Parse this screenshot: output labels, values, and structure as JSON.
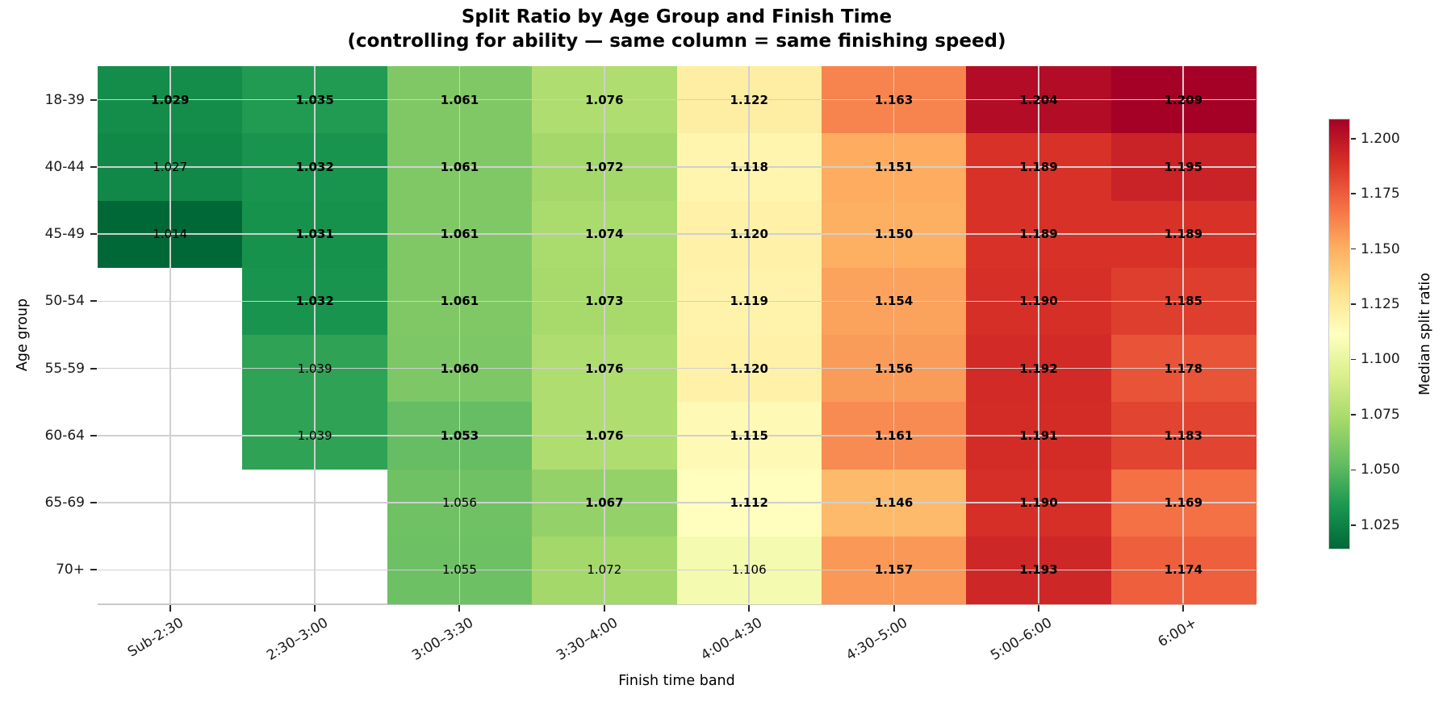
{
  "chart_data": {
    "type": "heatmap",
    "title": "Split Ratio by Age Group and Finish Time",
    "subtitle": "(controlling for ability — same column = same finishing speed)",
    "xlabel": "Finish time band",
    "ylabel": "Age group",
    "x_categories": [
      "Sub-2:30",
      "2:30–3:00",
      "3:00–3:30",
      "3:30–4:00",
      "4:00–4:30",
      "4:30–5:00",
      "5:00–6:00",
      "6:00+"
    ],
    "y_categories": [
      "18-39",
      "40-44",
      "45-49",
      "50-54",
      "55-59",
      "60-64",
      "65-69",
      "70+"
    ],
    "values": [
      [
        1.029,
        1.035,
        1.061,
        1.076,
        1.122,
        1.163,
        1.204,
        1.209
      ],
      [
        1.027,
        1.032,
        1.061,
        1.072,
        1.118,
        1.151,
        1.189,
        1.195
      ],
      [
        1.014,
        1.031,
        1.061,
        1.074,
        1.12,
        1.15,
        1.189,
        1.189
      ],
      [
        null,
        1.032,
        1.061,
        1.073,
        1.119,
        1.154,
        1.19,
        1.185
      ],
      [
        null,
        1.039,
        1.06,
        1.076,
        1.12,
        1.156,
        1.192,
        1.178
      ],
      [
        null,
        1.039,
        1.053,
        1.076,
        1.115,
        1.161,
        1.191,
        1.183
      ],
      [
        null,
        null,
        1.056,
        1.067,
        1.112,
        1.146,
        1.19,
        1.169
      ],
      [
        null,
        null,
        1.055,
        1.072,
        1.106,
        1.157,
        1.193,
        1.174
      ]
    ],
    "bold_cells": [
      [
        true,
        true,
        true,
        true,
        true,
        true,
        true,
        true
      ],
      [
        false,
        true,
        true,
        true,
        true,
        true,
        true,
        true
      ],
      [
        false,
        true,
        true,
        true,
        true,
        true,
        true,
        true
      ],
      [
        null,
        true,
        true,
        true,
        true,
        true,
        true,
        true
      ],
      [
        null,
        false,
        true,
        true,
        true,
        true,
        true,
        true
      ],
      [
        null,
        false,
        true,
        true,
        true,
        true,
        true,
        true
      ],
      [
        null,
        null,
        false,
        true,
        true,
        true,
        true,
        true
      ],
      [
        null,
        null,
        false,
        false,
        false,
        true,
        true,
        true
      ]
    ],
    "value_decimals": 3,
    "annotation_color": "#000000",
    "grid": true,
    "colormap": {
      "name": "RdYlGn_r",
      "stops": [
        "#006837",
        "#1a9850",
        "#66bd63",
        "#a6d96a",
        "#d9ef8b",
        "#ffffbf",
        "#fee08b",
        "#fdae61",
        "#f46d43",
        "#d73027",
        "#a50026"
      ]
    },
    "colorbar": {
      "label": "Median split ratio",
      "vmin": 1.014,
      "vmax": 1.209,
      "ticks": [
        1.025,
        1.05,
        1.075,
        1.1,
        1.125,
        1.15,
        1.175,
        1.2
      ],
      "position": "right"
    },
    "style_colors": {
      "gridline": "#d0d0d0",
      "spine": "#c9c9c9",
      "tick": "#262626",
      "missing_cell": "#ffffff"
    }
  }
}
